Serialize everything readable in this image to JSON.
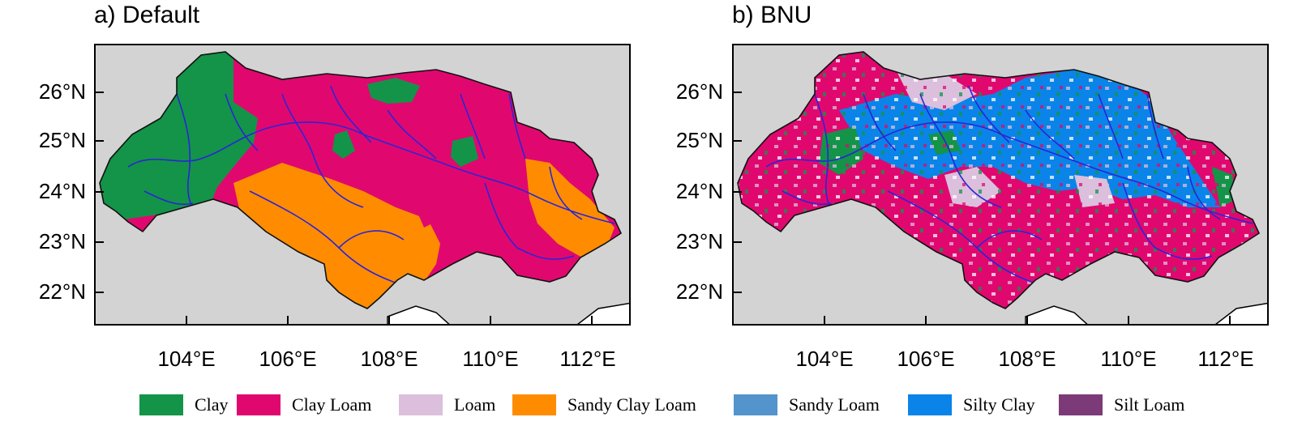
{
  "panels": [
    {
      "id": "default",
      "title": "a) Default"
    },
    {
      "id": "bnu",
      "title": "b) BNU"
    }
  ],
  "lat_labels": [
    "26°N",
    "25°N",
    "24°N",
    "23°N",
    "22°N"
  ],
  "lon_labels": [
    "104°E",
    "106°E",
    "108°E",
    "110°E",
    "112°E"
  ],
  "legend": [
    {
      "label": "Clay",
      "color": "#139448"
    },
    {
      "label": "Clay Loam",
      "color": "#e0086f"
    },
    {
      "label": "Loam",
      "color": "#dbbfdc"
    },
    {
      "label": "Sandy Clay Loam",
      "color": "#ff8c00"
    },
    {
      "label": "Sandy Loam",
      "color": "#5394cc"
    },
    {
      "label": "Silty Clay",
      "color": "#0a84e8"
    },
    {
      "label": "Silt Loam",
      "color": "#7c3b78"
    }
  ],
  "colors": {
    "background": "#d3d3d3",
    "river": "#2b24d8",
    "border": "#111111"
  }
}
